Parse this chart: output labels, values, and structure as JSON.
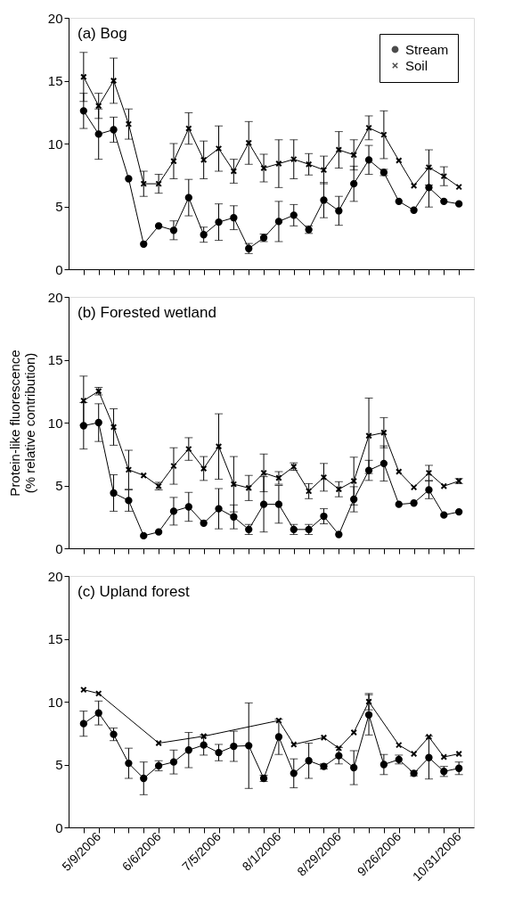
{
  "chart_data": [
    {
      "type": "line",
      "title": "(a) Bog",
      "categories": [
        null,
        "5/9/2006",
        null,
        null,
        null,
        "6/6/2006",
        null,
        null,
        null,
        "7/5/2006",
        null,
        null,
        null,
        "8/1/2006",
        null,
        null,
        null,
        "8/29/2006",
        null,
        null,
        null,
        "9/26/2006",
        null,
        null,
        null,
        "10/31/2006"
      ],
      "ylim": [
        0,
        20
      ],
      "yticks": [
        0,
        5,
        10,
        15,
        20
      ],
      "tick_labels": "y",
      "legend": "top right",
      "grid": false,
      "series": [
        {
          "name": "Stream",
          "color": "#000000",
          "marker": "circle",
          "line_style": "solid",
          "values": [
            12.6,
            10.75,
            11.1,
            7.2,
            2.0,
            3.45,
            3.1,
            5.7,
            2.75,
            3.75,
            4.1,
            1.65,
            2.5,
            3.8,
            4.3,
            3.15,
            5.5,
            4.65,
            6.8,
            8.7,
            7.7,
            5.4,
            4.7,
            6.5,
            5.4,
            5.2
          ],
          "errors": [
            1.4,
            2.0,
            1.0,
            null,
            null,
            null,
            0.75,
            1.45,
            0.6,
            1.45,
            0.95,
            0.4,
            0.3,
            1.6,
            0.85,
            0.3,
            1.4,
            1.15,
            1.4,
            1.15,
            0.25,
            null,
            null,
            1.55,
            null,
            null
          ]
        },
        {
          "name": "Soil",
          "color": "#000000",
          "marker": "cross",
          "line_style": "solid",
          "values": [
            15.3,
            13.0,
            15.0,
            11.55,
            6.8,
            6.8,
            8.6,
            11.2,
            8.7,
            9.6,
            7.8,
            10.05,
            8.05,
            8.4,
            8.75,
            8.35,
            7.9,
            9.5,
            9.1,
            11.25,
            10.7,
            8.65,
            6.65,
            8.1,
            7.4,
            6.55
          ],
          "errors": [
            1.95,
            1.0,
            1.8,
            1.2,
            1.0,
            0.75,
            1.4,
            1.25,
            1.5,
            1.8,
            0.95,
            1.7,
            1.1,
            1.9,
            1.55,
            0.85,
            1.1,
            1.45,
            1.2,
            0.95,
            1.9,
            null,
            null,
            1.4,
            0.75,
            null
          ]
        }
      ]
    },
    {
      "type": "line",
      "title": "(b) Forested wetland",
      "ylabel": "Protein-like fluorescence\n(% relative contribution)",
      "categories": [
        null,
        "5/9/2006",
        null,
        null,
        null,
        "6/6/2006",
        null,
        null,
        null,
        "7/5/2006",
        null,
        null,
        null,
        "8/1/2006",
        null,
        null,
        null,
        "8/29/2006",
        null,
        null,
        null,
        "9/26/2006",
        null,
        null,
        null,
        "10/31/2006"
      ],
      "ylim": [
        0,
        20
      ],
      "yticks": [
        0,
        5,
        10,
        15,
        20
      ],
      "tick_labels": "y",
      "grid": false,
      "series": [
        {
          "color": "#000000",
          "marker": "circle",
          "line_style": "solid",
          "values": [
            9.75,
            10.0,
            4.4,
            3.8,
            1.0,
            1.3,
            2.95,
            3.3,
            2.0,
            3.15,
            2.5,
            1.5,
            3.5,
            3.5,
            1.5,
            1.5,
            2.55,
            1.1,
            3.9,
            6.2,
            6.75,
            3.5,
            3.6,
            4.65,
            2.65,
            2.9
          ],
          "errors": [
            1.85,
            1.5,
            1.45,
            0.85,
            null,
            null,
            1.1,
            1.15,
            null,
            1.6,
            0.95,
            0.4,
            2.2,
            1.5,
            0.4,
            0.4,
            0.6,
            null,
            1.0,
            0.8,
            1.4,
            null,
            null,
            0.7,
            null,
            null
          ]
        },
        {
          "color": "#000000",
          "marker": "cross",
          "line_style": "solid",
          "values": [
            11.75,
            12.5,
            9.65,
            6.25,
            5.8,
            4.95,
            6.55,
            7.9,
            6.35,
            8.1,
            5.1,
            4.8,
            6.0,
            5.6,
            6.5,
            4.55,
            5.65,
            4.7,
            5.35,
            8.95,
            9.2,
            6.1,
            4.85,
            6.0,
            4.95,
            5.35
          ],
          "errors": [
            1.95,
            0.3,
            1.45,
            1.55,
            null,
            0.3,
            1.45,
            0.9,
            0.95,
            2.6,
            2.2,
            1.0,
            1.5,
            0.5,
            0.3,
            0.6,
            1.1,
            0.6,
            1.9,
            3.0,
            1.2,
            null,
            null,
            0.6,
            null,
            0.2
          ]
        }
      ]
    },
    {
      "type": "line",
      "title": "(c) Upland forest",
      "categories": [
        null,
        "5/9/2006",
        null,
        null,
        null,
        "6/6/2006",
        null,
        null,
        null,
        "7/5/2006",
        null,
        null,
        null,
        "8/1/2006",
        null,
        null,
        null,
        "8/29/2006",
        null,
        null,
        null,
        "9/26/2006",
        null,
        null,
        null,
        "10/31/2006"
      ],
      "ylim": [
        0,
        20
      ],
      "yticks": [
        0,
        5,
        10,
        15,
        20
      ],
      "grid": false,
      "series": [
        {
          "color": "#000000",
          "marker": "circle",
          "line_style": "solid",
          "values": [
            8.25,
            9.1,
            7.4,
            5.1,
            3.9,
            4.9,
            5.2,
            6.15,
            6.55,
            5.95,
            6.45,
            6.5,
            3.9,
            7.2,
            4.3,
            5.3,
            4.85,
            5.7,
            4.75,
            8.95,
            5.0,
            5.4,
            4.3,
            5.55,
            4.45,
            4.7
          ],
          "errors": [
            1.0,
            0.95,
            0.5,
            1.2,
            1.3,
            0.4,
            0.95,
            1.4,
            0.8,
            0.65,
            1.2,
            3.4,
            0.25,
            1.4,
            1.15,
            1.4,
            0.2,
            0.65,
            1.35,
            1.6,
            0.8,
            0.35,
            0.2,
            1.7,
            0.4,
            0.5
          ]
        },
        {
          "color": "#000000",
          "marker": "cross",
          "line_style": "solid",
          "values": [
            10.95,
            10.65,
            null,
            null,
            null,
            6.7,
            null,
            null,
            7.25,
            null,
            null,
            null,
            null,
            8.5,
            6.6,
            null,
            7.15,
            6.3,
            7.55,
            10.0,
            null,
            6.55,
            5.85,
            7.2,
            5.6,
            5.85
          ],
          "errors": [
            null,
            null,
            null,
            null,
            null,
            null,
            null,
            null,
            null,
            null,
            null,
            null,
            null,
            null,
            null,
            null,
            null,
            null,
            null,
            0.65,
            null,
            null,
            null,
            null,
            null,
            null
          ]
        }
      ]
    }
  ]
}
